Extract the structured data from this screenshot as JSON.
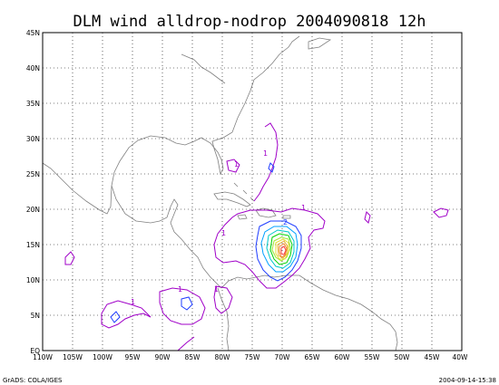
{
  "title": "DLM wind alldrop-nodrop 2004090818 12h",
  "footer": {
    "left": "GrADS: COLA/IGES",
    "right": "2004-09-14-15:38"
  },
  "axes": {
    "x_ticks": [
      "110W",
      "105W",
      "100W",
      "95W",
      "90W",
      "85W",
      "80W",
      "75W",
      "70W",
      "65W",
      "60W",
      "55W",
      "50W",
      "45W",
      "40W"
    ],
    "y_ticks": [
      "EQ",
      "5N",
      "10N",
      "15N",
      "20N",
      "25N",
      "30N",
      "35N",
      "40N",
      "45N"
    ],
    "lon_range": [
      -110,
      -40
    ],
    "lat_range": [
      0,
      45
    ]
  },
  "contour_labels": [
    "1",
    "1",
    "1",
    "1",
    "1",
    "1",
    "1",
    "2"
  ],
  "colors": {
    "coast": "#808080",
    "grid": "#000000",
    "contour_1": "#a000c8",
    "contour_2": "#1e3cff",
    "contour_3": "#00a0ff",
    "contour_4": "#00c8c8",
    "contour_5": "#00d200",
    "contour_6": "#a0e632",
    "contour_7": "#e6dc32",
    "contour_8": "#e6af2d",
    "contour_9": "#f08228",
    "contour_10": "#fa3c3c"
  }
}
